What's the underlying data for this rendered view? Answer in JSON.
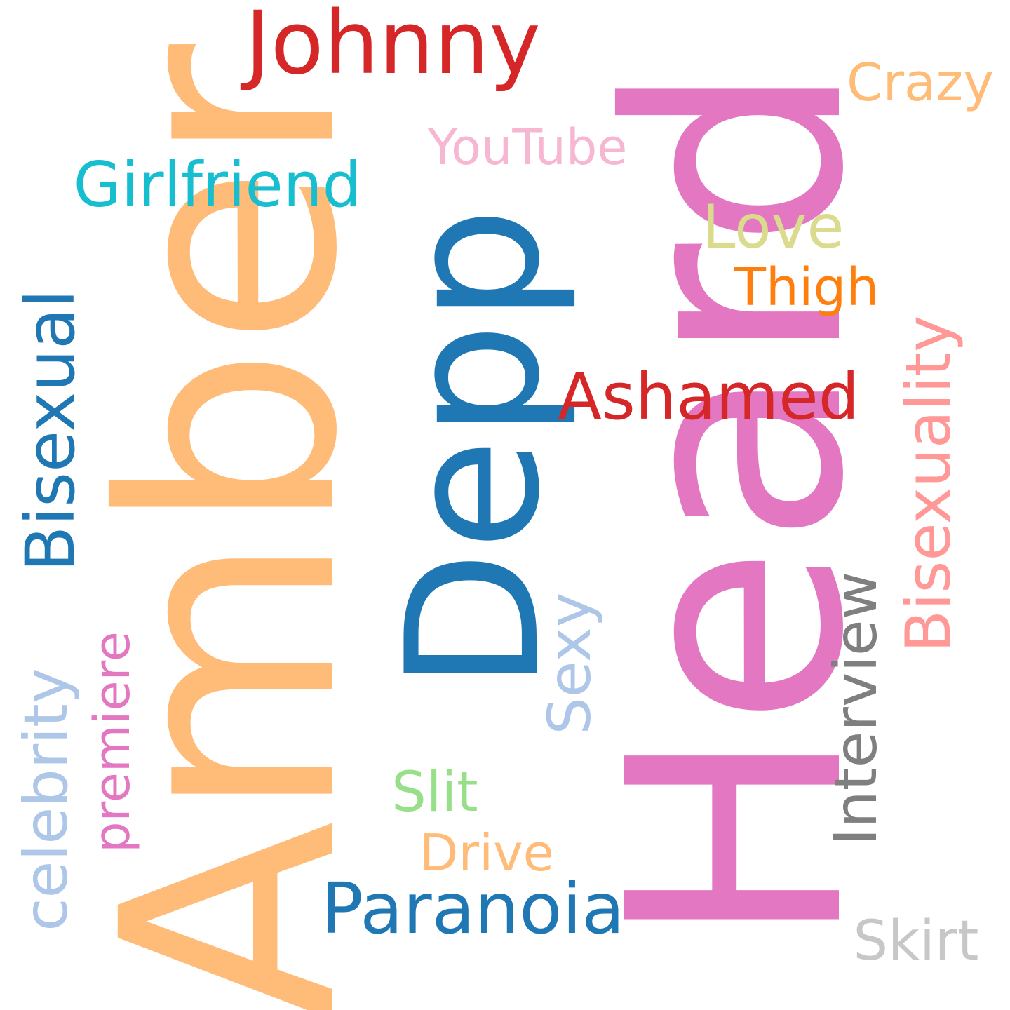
{
  "words": {
    "amber": {
      "text": "Amber",
      "color": "#ffbb78",
      "orientation": "vertical"
    },
    "heard": {
      "text": "Heard",
      "color": "#e377c2",
      "orientation": "vertical"
    },
    "depp": {
      "text": "Depp",
      "color": "#1f77b4",
      "orientation": "vertical"
    },
    "johnny": {
      "text": "Johnny",
      "color": "#d62728",
      "orientation": "horizontal"
    },
    "crazy": {
      "text": "Crazy",
      "color": "#ffbb78",
      "orientation": "horizontal"
    },
    "youtube": {
      "text": "YouTube",
      "color": "#f7b6d2",
      "orientation": "horizontal"
    },
    "girlfriend": {
      "text": "Girlfriend",
      "color": "#17becf",
      "orientation": "horizontal"
    },
    "love": {
      "text": "Love",
      "color": "#dbdb8d",
      "orientation": "horizontal"
    },
    "thigh": {
      "text": "Thigh",
      "color": "#ff7f0e",
      "orientation": "horizontal"
    },
    "ashamed": {
      "text": "Ashamed",
      "color": "#d62728",
      "orientation": "horizontal"
    },
    "bisexual": {
      "text": "Bisexual",
      "color": "#1f77b4",
      "orientation": "vertical"
    },
    "bisexuality": {
      "text": "Bisexuality",
      "color": "#ff9896",
      "orientation": "vertical"
    },
    "interview": {
      "text": "Interview",
      "color": "#7f7f7f",
      "orientation": "vertical"
    },
    "sexy": {
      "text": "Sexy",
      "color": "#aec7e8",
      "orientation": "vertical"
    },
    "celebrity": {
      "text": "celebrity",
      "color": "#aec7e8",
      "orientation": "vertical"
    },
    "premiere": {
      "text": "premiere",
      "color": "#e377c2",
      "orientation": "vertical"
    },
    "slit": {
      "text": "Slit",
      "color": "#98df8a",
      "orientation": "horizontal"
    },
    "drive": {
      "text": "Drive",
      "color": "#ffbb78",
      "orientation": "horizontal"
    },
    "paranoia": {
      "text": "Paranoia",
      "color": "#1f77b4",
      "orientation": "horizontal"
    },
    "skirt": {
      "text": "Skirt",
      "color": "#c7c7c7",
      "orientation": "horizontal"
    }
  }
}
